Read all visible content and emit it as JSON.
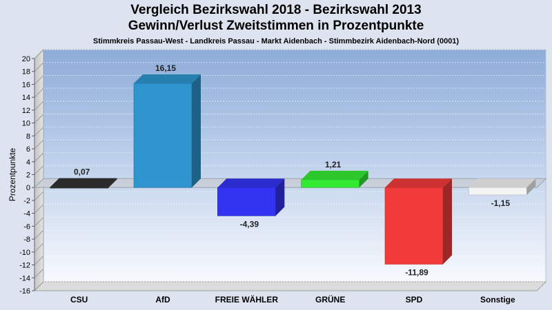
{
  "chart_data": {
    "type": "bar",
    "title": "Vergleich Bezirkswahl 2018 - Bezirkswahl 2013",
    "title2": "Gewinn/Verlust Zweitstimmen in Prozentpunkte",
    "subtitle": "Stimmkreis Passau-West - Landkreis Passau - Markt Aidenbach - Stimmbezirk Aidenbach-Nord (0001)",
    "ylabel": "Prozentpunkte",
    "ylim": [
      -16,
      20
    ],
    "yticks": [
      20,
      18,
      16,
      14,
      12,
      10,
      8,
      6,
      4,
      2,
      0,
      -2,
      -4,
      -6,
      -8,
      -10,
      -12,
      -14,
      -16
    ],
    "categories": [
      "CSU",
      "AfD",
      "FREIE WÄHLER",
      "GRÜNE",
      "SPD",
      "Sonstige"
    ],
    "values": [
      0.07,
      16.15,
      -4.39,
      1.21,
      -11.89,
      -1.15
    ],
    "labels": [
      "0,07",
      "16,15",
      "-4,39",
      "1,21",
      "-11,89",
      "-1,15"
    ],
    "colors": [
      "#333333",
      "#2e95cf",
      "#3333f2",
      "#33ea33",
      "#f23a3a",
      "#f4f4f4"
    ],
    "grid": true,
    "legend": "none"
  }
}
